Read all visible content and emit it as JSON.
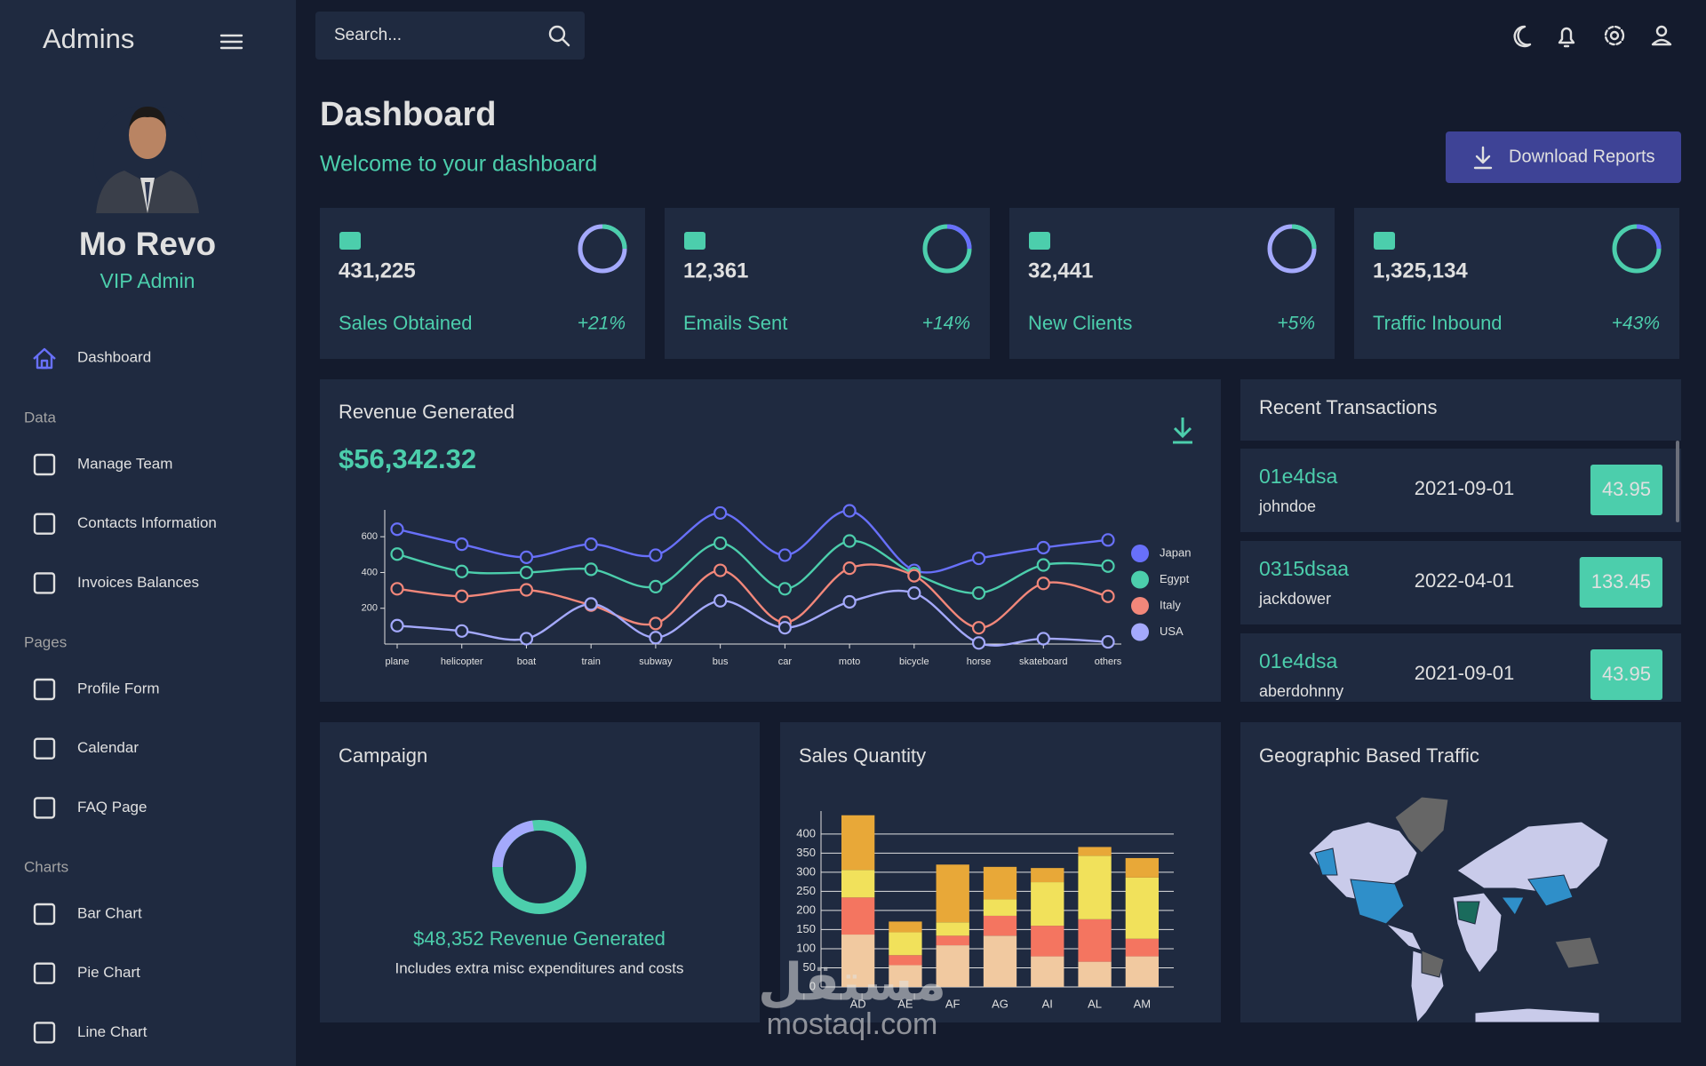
{
  "sidebar": {
    "brand": "Admins",
    "user": {
      "name": "Mo Revo",
      "role": "VIP Admin"
    },
    "nav": [
      {
        "label": "Dashboard"
      }
    ],
    "sections": [
      {
        "title": "Data",
        "items": [
          "Manage Team",
          "Contacts Information",
          "Invoices Balances"
        ]
      },
      {
        "title": "Pages",
        "items": [
          "Profile Form",
          "Calendar",
          "FAQ Page"
        ]
      },
      {
        "title": "Charts",
        "items": [
          "Bar Chart",
          "Pie Chart",
          "Line Chart"
        ]
      }
    ]
  },
  "search": {
    "placeholder": "Search..."
  },
  "header": {
    "title": "Dashboard",
    "subtitle": "Welcome to your dashboard",
    "button": "Download Reports"
  },
  "stats": [
    {
      "value": "431,225",
      "label": "Sales Obtained",
      "change": "+21%"
    },
    {
      "value": "12,361",
      "label": "Emails Sent",
      "change": "+14%"
    },
    {
      "value": "32,441",
      "label": "New Clients",
      "change": "+5%"
    },
    {
      "value": "1,325,134",
      "label": "Traffic Inbound",
      "change": "+43%"
    }
  ],
  "revenue": {
    "title": "Revenue Generated",
    "amount": "$56,342.32",
    "chart_data": {
      "type": "line",
      "categories": [
        "plane",
        "helicopter",
        "boat",
        "train",
        "subway",
        "bus",
        "car",
        "moto",
        "bicycle",
        "horse",
        "skateboard",
        "others"
      ],
      "series": [
        {
          "name": "Japan",
          "color": "#6870fa",
          "values": [
            642,
            558,
            485,
            558,
            497,
            733,
            497,
            745,
            412,
            479,
            539,
            582
          ]
        },
        {
          "name": "Egypt",
          "color": "#4cceac",
          "values": [
            503,
            406,
            400,
            418,
            321,
            564,
            309,
            576,
            394,
            285,
            442,
            436
          ]
        },
        {
          "name": "Italy",
          "color": "#f2877a",
          "values": [
            309,
            267,
            303,
            218,
            115,
            412,
            121,
            424,
            382,
            91,
            339,
            267
          ]
        },
        {
          "name": "USA",
          "color": "#a4a9fc",
          "values": [
            103,
            73,
            30,
            224,
            36,
            242,
            91,
            236,
            285,
            6,
            30,
            12
          ]
        }
      ],
      "ylim": [
        0,
        750
      ],
      "yticks": [
        200,
        400,
        600
      ],
      "grid": false,
      "legend": "right"
    }
  },
  "transactions": {
    "title": "Recent Transactions",
    "rows": [
      {
        "id": "01e4dsa",
        "user": "johndoe",
        "date": "2021-09-01",
        "cost": "43.95"
      },
      {
        "id": "0315dsaa",
        "user": "jackdower",
        "date": "2022-04-01",
        "cost": "133.45"
      },
      {
        "id": "01e4dsa",
        "user": "aberdohnny",
        "date": "2021-09-01",
        "cost": "43.95"
      }
    ]
  },
  "campaign": {
    "title": "Campaign",
    "amount_text": "$48,352 Revenue Generated",
    "note": "Includes extra misc expenditures and costs"
  },
  "sales": {
    "title": "Sales Quantity",
    "chart_data": {
      "type": "bar",
      "stacked": true,
      "categories": [
        "AD",
        "AE",
        "AF",
        "AG",
        "AI",
        "AL",
        "AM"
      ],
      "series": [
        {
          "color": "#f1c9a0",
          "values": [
            137,
            57,
            109,
            134,
            80,
            66,
            80
          ]
        },
        {
          "color": "#f47560",
          "values": [
            97,
            26,
            25,
            52,
            80,
            111,
            46
          ]
        },
        {
          "color": "#f1e15b",
          "values": [
            72,
            60,
            35,
            43,
            114,
            166,
            160
          ]
        },
        {
          "color": "#e8a838",
          "values": [
            143,
            28,
            151,
            85,
            37,
            23,
            51
          ]
        }
      ],
      "ylim": [
        0,
        460
      ],
      "yticks": [
        0,
        50,
        100,
        150,
        200,
        250,
        300,
        350,
        400
      ],
      "grid": true
    }
  },
  "geo": {
    "title": "Geographic Based Traffic"
  },
  "watermark": {
    "arabic": "مستقل",
    "latin": "mostaql.com"
  }
}
